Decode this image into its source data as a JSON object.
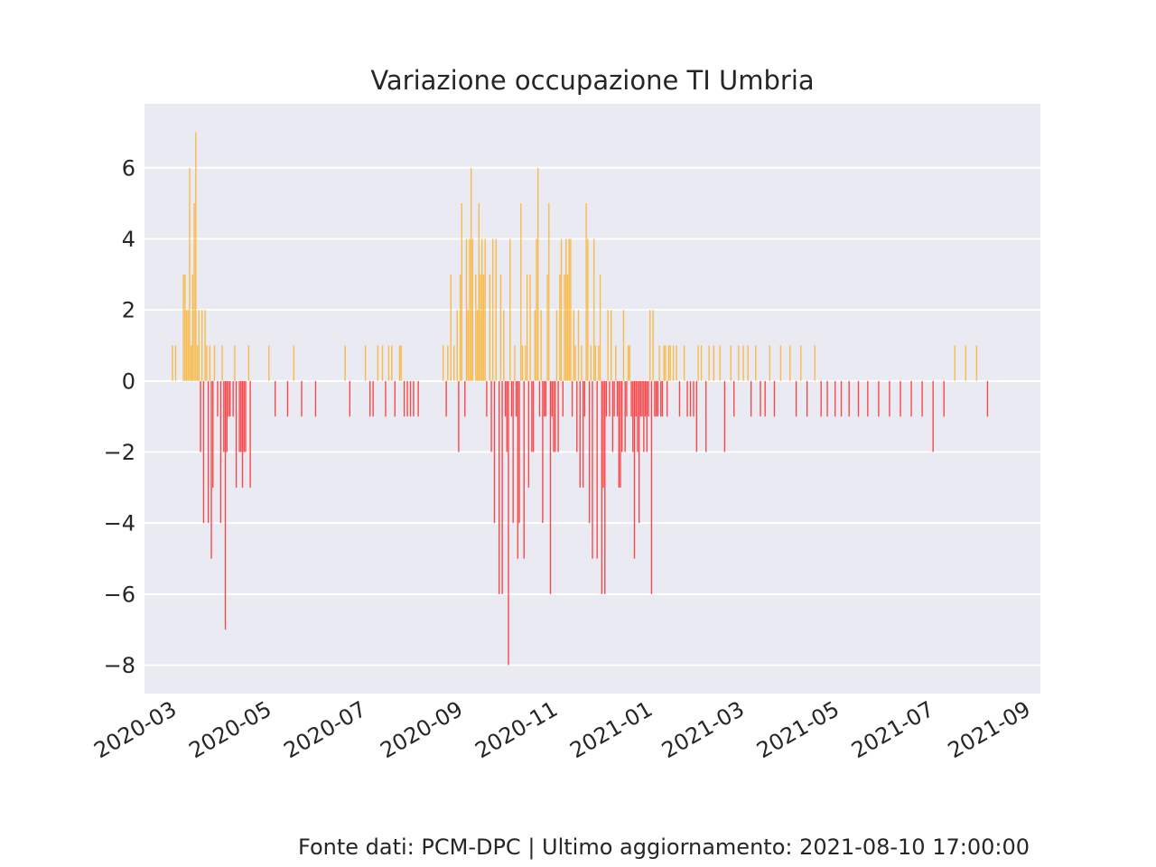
{
  "chart_data": {
    "type": "bar",
    "title": "Variazione occupazione TI Umbria",
    "xlabel": "",
    "ylabel": "",
    "ylim": [
      -8.8,
      7.8
    ],
    "yticks": [
      -8,
      -6,
      -4,
      -2,
      0,
      2,
      4,
      6
    ],
    "xlim": [
      "2020-02-13",
      "2021-09-11"
    ],
    "xticks": [
      "2020-03",
      "2020-05",
      "2020-07",
      "2020-09",
      "2020-11",
      "2021-01",
      "2021-03",
      "2021-05",
      "2021-07",
      "2021-09"
    ],
    "grid": true,
    "colors": {
      "positive": "#ffa500",
      "negative": "#ff0000",
      "background": "#eaeaf2",
      "grid": "#ffffff"
    },
    "bars": [
      [
        "2020-03-02",
        1
      ],
      [
        "2020-03-04",
        1
      ],
      [
        "2020-03-09",
        3
      ],
      [
        "2020-03-10",
        3
      ],
      [
        "2020-03-11",
        2
      ],
      [
        "2020-03-12",
        2
      ],
      [
        "2020-03-13",
        6
      ],
      [
        "2020-03-14",
        1
      ],
      [
        "2020-03-15",
        3
      ],
      [
        "2020-03-16",
        5
      ],
      [
        "2020-03-17",
        7
      ],
      [
        "2020-03-18",
        1
      ],
      [
        "2020-03-19",
        2
      ],
      [
        "2020-03-20",
        -2
      ],
      [
        "2020-03-21",
        2
      ],
      [
        "2020-03-22",
        -4
      ],
      [
        "2020-03-23",
        2
      ],
      [
        "2020-03-24",
        1
      ],
      [
        "2020-03-25",
        -4
      ],
      [
        "2020-03-26",
        1
      ],
      [
        "2020-03-27",
        -5
      ],
      [
        "2020-03-28",
        -3
      ],
      [
        "2020-03-29",
        1
      ],
      [
        "2020-03-31",
        -1
      ],
      [
        "2020-04-02",
        -4
      ],
      [
        "2020-04-03",
        1
      ],
      [
        "2020-04-04",
        -2
      ],
      [
        "2020-04-05",
        -7
      ],
      [
        "2020-04-06",
        -2
      ],
      [
        "2020-04-07",
        -1
      ],
      [
        "2020-04-08",
        -1
      ],
      [
        "2020-04-10",
        -1
      ],
      [
        "2020-04-11",
        1
      ],
      [
        "2020-04-12",
        -3
      ],
      [
        "2020-04-14",
        -2
      ],
      [
        "2020-04-15",
        -2
      ],
      [
        "2020-04-16",
        -3
      ],
      [
        "2020-04-17",
        -2
      ],
      [
        "2020-04-18",
        -2
      ],
      [
        "2020-04-20",
        1
      ],
      [
        "2020-04-21",
        -3
      ],
      [
        "2020-05-03",
        1
      ],
      [
        "2020-05-07",
        -1
      ],
      [
        "2020-05-15",
        -1
      ],
      [
        "2020-05-19",
        1
      ],
      [
        "2020-05-24",
        -1
      ],
      [
        "2020-06-02",
        -1
      ],
      [
        "2020-06-21",
        1
      ],
      [
        "2020-06-24",
        -1
      ],
      [
        "2020-07-04",
        1
      ],
      [
        "2020-07-07",
        -1
      ],
      [
        "2020-07-09",
        -1
      ],
      [
        "2020-07-12",
        1
      ],
      [
        "2020-07-15",
        1
      ],
      [
        "2020-07-17",
        -1
      ],
      [
        "2020-07-19",
        1
      ],
      [
        "2020-07-21",
        1
      ],
      [
        "2020-07-23",
        -1
      ],
      [
        "2020-07-26",
        1
      ],
      [
        "2020-07-27",
        1
      ],
      [
        "2020-07-29",
        -1
      ],
      [
        "2020-07-31",
        -1
      ],
      [
        "2020-08-02",
        -1
      ],
      [
        "2020-08-04",
        -1
      ],
      [
        "2020-08-07",
        -1
      ],
      [
        "2020-08-23",
        1
      ],
      [
        "2020-08-25",
        -1
      ],
      [
        "2020-08-26",
        1
      ],
      [
        "2020-08-28",
        3
      ],
      [
        "2020-08-30",
        1
      ],
      [
        "2020-09-01",
        2
      ],
      [
        "2020-09-02",
        -2
      ],
      [
        "2020-09-03",
        3
      ],
      [
        "2020-09-04",
        5
      ],
      [
        "2020-09-06",
        -1
      ],
      [
        "2020-09-07",
        4
      ],
      [
        "2020-09-08",
        2
      ],
      [
        "2020-09-09",
        4
      ],
      [
        "2020-09-10",
        6
      ],
      [
        "2020-09-11",
        4
      ],
      [
        "2020-09-13",
        3
      ],
      [
        "2020-09-14",
        2
      ],
      [
        "2020-09-15",
        5
      ],
      [
        "2020-09-16",
        3
      ],
      [
        "2020-09-17",
        4
      ],
      [
        "2020-09-18",
        3
      ],
      [
        "2020-09-19",
        4
      ],
      [
        "2020-09-20",
        -1
      ],
      [
        "2020-09-22",
        3
      ],
      [
        "2020-09-23",
        -2
      ],
      [
        "2020-09-24",
        4
      ],
      [
        "2020-09-25",
        -4
      ],
      [
        "2020-09-26",
        4
      ],
      [
        "2020-09-28",
        -6
      ],
      [
        "2020-09-29",
        3
      ],
      [
        "2020-09-30",
        -6
      ],
      [
        "2020-10-01",
        2
      ],
      [
        "2020-10-02",
        -1
      ],
      [
        "2020-10-03",
        -2
      ],
      [
        "2020-10-04",
        -8
      ],
      [
        "2020-10-05",
        4
      ],
      [
        "2020-10-06",
        -1
      ],
      [
        "2020-10-07",
        -4
      ],
      [
        "2020-10-08",
        1
      ],
      [
        "2020-10-09",
        -1
      ],
      [
        "2020-10-10",
        -5
      ],
      [
        "2020-10-11",
        -4
      ],
      [
        "2020-10-12",
        5
      ],
      [
        "2020-10-13",
        1
      ],
      [
        "2020-10-14",
        -5
      ],
      [
        "2020-10-15",
        1
      ],
      [
        "2020-10-16",
        3
      ],
      [
        "2020-10-17",
        -3
      ],
      [
        "2020-10-18",
        3
      ],
      [
        "2020-10-19",
        -2
      ],
      [
        "2020-10-20",
        -2
      ],
      [
        "2020-10-21",
        2
      ],
      [
        "2020-10-22",
        4
      ],
      [
        "2020-10-23",
        6
      ],
      [
        "2020-10-24",
        -1
      ],
      [
        "2020-10-25",
        2
      ],
      [
        "2020-10-26",
        -4
      ],
      [
        "2020-10-27",
        -1
      ],
      [
        "2020-10-28",
        -1
      ],
      [
        "2020-10-29",
        3
      ],
      [
        "2020-10-30",
        5
      ],
      [
        "2020-10-31",
        -6
      ],
      [
        "2020-11-01",
        -1
      ],
      [
        "2020-11-02",
        -2
      ],
      [
        "2020-11-03",
        -2
      ],
      [
        "2020-11-04",
        2
      ],
      [
        "2020-11-05",
        -2
      ],
      [
        "2020-11-06",
        3
      ],
      [
        "2020-11-07",
        4
      ],
      [
        "2020-11-08",
        -1
      ],
      [
        "2020-11-09",
        3
      ],
      [
        "2020-11-10",
        4
      ],
      [
        "2020-11-11",
        3
      ],
      [
        "2020-11-12",
        4
      ],
      [
        "2020-11-13",
        4
      ],
      [
        "2020-11-14",
        -1
      ],
      [
        "2020-11-15",
        2
      ],
      [
        "2020-11-16",
        1
      ],
      [
        "2020-11-17",
        -2
      ],
      [
        "2020-11-18",
        2
      ],
      [
        "2020-11-19",
        -3
      ],
      [
        "2020-11-20",
        1
      ],
      [
        "2020-11-21",
        -3
      ],
      [
        "2020-11-22",
        -1
      ],
      [
        "2020-11-23",
        5
      ],
      [
        "2020-11-24",
        4
      ],
      [
        "2020-11-25",
        -4
      ],
      [
        "2020-11-26",
        1
      ],
      [
        "2020-11-27",
        -5
      ],
      [
        "2020-11-28",
        4
      ],
      [
        "2020-11-29",
        1
      ],
      [
        "2020-11-30",
        -5
      ],
      [
        "2020-12-01",
        1
      ],
      [
        "2020-12-02",
        3
      ],
      [
        "2020-12-03",
        -6
      ],
      [
        "2020-12-04",
        -3
      ],
      [
        "2020-12-05",
        -6
      ],
      [
        "2020-12-06",
        -1
      ],
      [
        "2020-12-07",
        2
      ],
      [
        "2020-12-08",
        -1
      ],
      [
        "2020-12-09",
        2
      ],
      [
        "2020-12-10",
        -2
      ],
      [
        "2020-12-11",
        -1
      ],
      [
        "2020-12-12",
        1
      ],
      [
        "2020-12-13",
        -1
      ],
      [
        "2020-12-14",
        -3
      ],
      [
        "2020-12-15",
        -3
      ],
      [
        "2020-12-16",
        -2
      ],
      [
        "2020-12-17",
        2
      ],
      [
        "2020-12-18",
        -2
      ],
      [
        "2020-12-19",
        -1
      ],
      [
        "2020-12-20",
        1
      ],
      [
        "2020-12-21",
        1
      ],
      [
        "2020-12-22",
        -1
      ],
      [
        "2020-12-23",
        -2
      ],
      [
        "2020-12-24",
        -5
      ],
      [
        "2020-12-25",
        -1
      ],
      [
        "2020-12-26",
        -2
      ],
      [
        "2020-12-27",
        -4
      ],
      [
        "2020-12-28",
        -1
      ],
      [
        "2020-12-29",
        -1
      ],
      [
        "2020-12-30",
        -2
      ],
      [
        "2020-12-31",
        -1
      ],
      [
        "2021-01-01",
        -2
      ],
      [
        "2021-01-02",
        -1
      ],
      [
        "2021-01-03",
        2
      ],
      [
        "2021-01-04",
        -6
      ],
      [
        "2021-01-05",
        2
      ],
      [
        "2021-01-06",
        -1
      ],
      [
        "2021-01-07",
        -1
      ],
      [
        "2021-01-08",
        -1
      ],
      [
        "2021-01-09",
        1
      ],
      [
        "2021-01-10",
        -1
      ],
      [
        "2021-01-11",
        -1
      ],
      [
        "2021-01-12",
        1
      ],
      [
        "2021-01-13",
        1
      ],
      [
        "2021-01-14",
        -1
      ],
      [
        "2021-01-15",
        1
      ],
      [
        "2021-01-16",
        1
      ],
      [
        "2021-01-18",
        1
      ],
      [
        "2021-01-20",
        1
      ],
      [
        "2021-01-22",
        -1
      ],
      [
        "2021-01-25",
        1
      ],
      [
        "2021-01-27",
        -1
      ],
      [
        "2021-01-29",
        -1
      ],
      [
        "2021-01-31",
        -1
      ],
      [
        "2021-02-02",
        -2
      ],
      [
        "2021-02-03",
        1
      ],
      [
        "2021-02-05",
        1
      ],
      [
        "2021-02-08",
        -2
      ],
      [
        "2021-02-10",
        1
      ],
      [
        "2021-02-13",
        1
      ],
      [
        "2021-02-17",
        1
      ],
      [
        "2021-02-20",
        -2
      ],
      [
        "2021-02-24",
        1
      ],
      [
        "2021-02-26",
        -1
      ],
      [
        "2021-03-01",
        1
      ],
      [
        "2021-03-04",
        1
      ],
      [
        "2021-03-07",
        1
      ],
      [
        "2021-03-09",
        -1
      ],
      [
        "2021-03-12",
        1
      ],
      [
        "2021-03-15",
        -1
      ],
      [
        "2021-03-18",
        -1
      ],
      [
        "2021-03-21",
        1
      ],
      [
        "2021-03-24",
        -1
      ],
      [
        "2021-03-28",
        1
      ],
      [
        "2021-04-03",
        1
      ],
      [
        "2021-04-07",
        -1
      ],
      [
        "2021-04-10",
        1
      ],
      [
        "2021-04-14",
        -1
      ],
      [
        "2021-04-19",
        1
      ],
      [
        "2021-04-23",
        -1
      ],
      [
        "2021-04-27",
        -1
      ],
      [
        "2021-05-02",
        -1
      ],
      [
        "2021-05-06",
        -1
      ],
      [
        "2021-05-11",
        -1
      ],
      [
        "2021-05-17",
        -1
      ],
      [
        "2021-05-23",
        -1
      ],
      [
        "2021-05-30",
        -1
      ],
      [
        "2021-06-06",
        -1
      ],
      [
        "2021-06-13",
        -1
      ],
      [
        "2021-06-20",
        -1
      ],
      [
        "2021-06-27",
        -1
      ],
      [
        "2021-07-04",
        -2
      ],
      [
        "2021-07-11",
        -1
      ],
      [
        "2021-07-18",
        1
      ],
      [
        "2021-07-25",
        1
      ],
      [
        "2021-08-01",
        1
      ],
      [
        "2021-08-08",
        -1
      ]
    ]
  },
  "footer": {
    "text": "Fonte dati: PCM-DPC | Ultimo aggiornamento: 2021-08-10 17:00:00"
  }
}
